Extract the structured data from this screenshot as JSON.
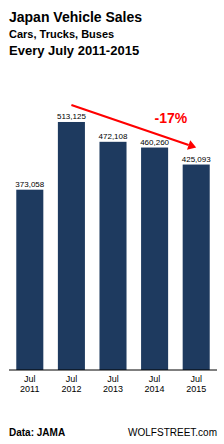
{
  "chart_data": {
    "type": "bar",
    "title": "Japan  Vehicle Sales",
    "subtitle": [
      "Cars, Trucks, Buses",
      "Every July 2011-2015"
    ],
    "categories": [
      "Jul\n2011",
      "Jul\n2012",
      "Jul\n2013",
      "Jul\n2014",
      "Jul\n2015"
    ],
    "values": [
      373058,
      513125,
      472108,
      460260,
      425093
    ],
    "value_labels": [
      "373,058",
      "513,125",
      "472,108",
      "460,260",
      "425,093"
    ],
    "data_labels": true,
    "color": "#1e3a5f",
    "ylim": [
      0,
      600000
    ],
    "tick_labels": "x",
    "grid": false,
    "annotations": [
      {
        "text": "-17%",
        "color": "#ff0000"
      },
      {
        "text": "Data: JAMA"
      },
      {
        "text": "WOLFSTREET.com"
      }
    ]
  }
}
